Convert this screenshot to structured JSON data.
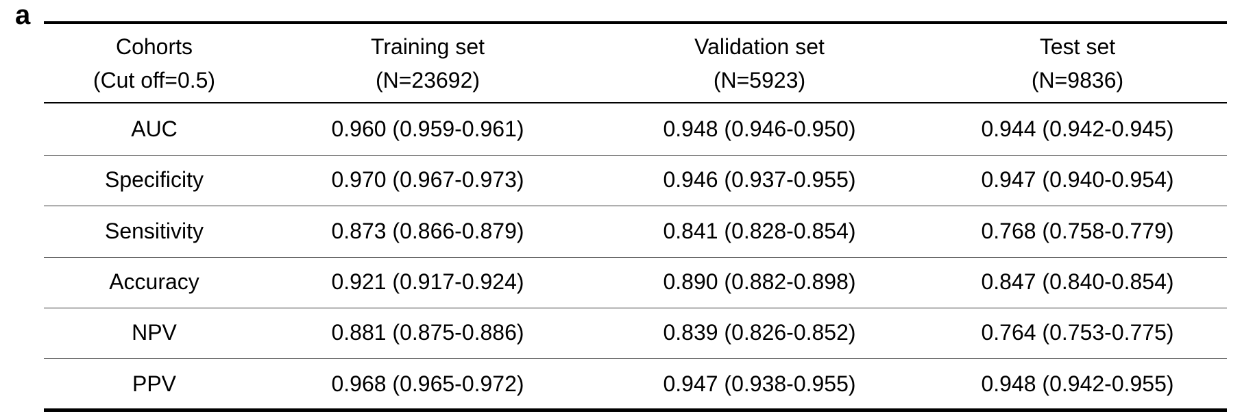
{
  "panel_label": "a",
  "header": [
    {
      "line1": "Cohorts",
      "line2": "(Cut off=0.5)"
    },
    {
      "line1": "Training set",
      "line2": "(N=23692)"
    },
    {
      "line1": "Validation set",
      "line2": "(N=5923)"
    },
    {
      "line1": "Test set",
      "line2": "(N=9836)"
    }
  ],
  "rows": [
    {
      "metric": "AUC",
      "training": "0.960 (0.959-0.961)",
      "validation": "0.948 (0.946-0.950)",
      "test": "0.944 (0.942-0.945)"
    },
    {
      "metric": "Specificity",
      "training": "0.970 (0.967-0.973)",
      "validation": "0.946 (0.937-0.955)",
      "test": "0.947 (0.940-0.954)"
    },
    {
      "metric": "Sensitivity",
      "training": "0.873 (0.866-0.879)",
      "validation": "0.841 (0.828-0.854)",
      "test": "0.768 (0.758-0.779)"
    },
    {
      "metric": "Accuracy",
      "training": "0.921 (0.917-0.924)",
      "validation": "0.890 (0.882-0.898)",
      "test": "0.847 (0.840-0.854)"
    },
    {
      "metric": "NPV",
      "training": "0.881 (0.875-0.886)",
      "validation": "0.839 (0.826-0.852)",
      "test": "0.764 (0.753-0.775)"
    },
    {
      "metric": "PPV",
      "training": "0.968 (0.965-0.972)",
      "validation": "0.947 (0.938-0.955)",
      "test": "0.948 (0.942-0.955)"
    }
  ]
}
